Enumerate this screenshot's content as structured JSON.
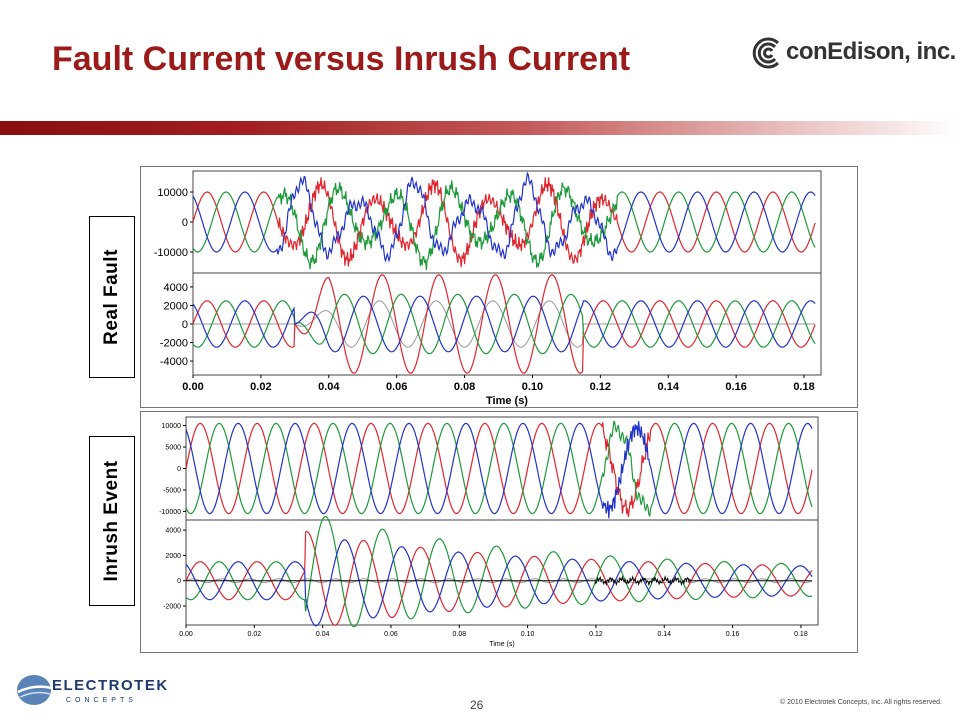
{
  "slide": {
    "title": "Fault Current versus Inrush Current",
    "page_number": "26",
    "copyright": "© 2010 Electrotek Concepts, Inc. All rights reserved."
  },
  "logos": {
    "top_right_text": "conEdison, inc.",
    "bottom_left_line1": "ELECTROTEK",
    "bottom_left_line2": "CONCEPTS"
  },
  "labels": {
    "top": "Real Fault",
    "bottom": "Inrush Event"
  },
  "colors": {
    "title": "#9b1b1b",
    "phase_red": "#e0262e",
    "phase_green": "#1e9a3a",
    "phase_blue": "#2233c8",
    "residual": "#999999"
  },
  "chart_data": [
    {
      "type": "line",
      "name": "real-fault",
      "xlabel": "Time (s)",
      "xlim": [
        0,
        0.185
      ],
      "x_ticks": [
        "0.00",
        "0.02",
        "0.04",
        "0.06",
        "0.08",
        "0.10",
        "0.12",
        "0.14",
        "0.16",
        "0.18"
      ],
      "panels": [
        {
          "quantity": "voltage",
          "ylim": [
            -17000,
            17000
          ],
          "y_ticks": [
            "10000",
            "0",
            "-10000"
          ],
          "series": [
            {
              "color": "red",
              "values": "three-phase sinusoid, amplitude 10000, 60 Hz, heavy distortion 0.025-0.125 s"
            },
            {
              "color": "green",
              "values": "three-phase sinusoid, amplitude 10000, 60 Hz, heavy distortion 0.025-0.125 s"
            },
            {
              "color": "blue",
              "values": "three-phase sinusoid, amplitude 10000, 60 Hz, heavy distortion 0.025-0.125 s"
            }
          ]
        },
        {
          "quantity": "current",
          "ylim": [
            -5500,
            5500
          ],
          "y_ticks": [
            "4000",
            "2000",
            "0",
            "-2000",
            "-4000"
          ],
          "series": [
            {
              "color": "red",
              "values": "load 2500 A peak; fault 0.03-0.115 s peaks ~5500 A"
            },
            {
              "color": "green",
              "values": "load 2500 A peak; fault 0.03-0.115 s"
            },
            {
              "color": "blue",
              "values": "load 2500 A peak; fault 0.03-0.115 s"
            },
            {
              "color": "gray",
              "values": "residual current rising during fault"
            }
          ]
        }
      ]
    },
    {
      "type": "line",
      "name": "inrush-event",
      "xlabel": "Time (s)",
      "xlim": [
        0,
        0.185
      ],
      "x_ticks": [
        "0.00",
        "0.02",
        "0.04",
        "0.06",
        "0.08",
        "0.10",
        "0.12",
        "0.14",
        "0.16",
        "0.18"
      ],
      "panels": [
        {
          "quantity": "voltage",
          "ylim": [
            -12000,
            12000
          ],
          "y_ticks": [
            "10000",
            "5000",
            "0",
            "-5000",
            "-10000"
          ],
          "series": [
            {
              "color": "red",
              "values": "three-phase sinusoid, amplitude ~10500, disturbance 0.122-0.135 s"
            },
            {
              "color": "green",
              "values": "three-phase sinusoid, amplitude ~10500, disturbance 0.122-0.135 s"
            },
            {
              "color": "blue",
              "values": "three-phase sinusoid, amplitude ~10500, disturbance 0.122-0.135 s"
            }
          ]
        },
        {
          "quantity": "current",
          "ylim": [
            -3500,
            4800
          ],
          "y_ticks": [
            "4000",
            "2000",
            "0",
            "-2000"
          ],
          "series": [
            {
              "color": "red",
              "values": "inrush peak ~3000 A at 0.045 s decaying"
            },
            {
              "color": "green",
              "values": "inrush peak ~4000 A at 0.04 s decaying"
            },
            {
              "color": "blue",
              "values": "inrush peak ~-2800 A decaying"
            },
            {
              "color": "black",
              "values": "residual noise near 0, 0.12-0.145 s"
            },
            {
              "color": "gray",
              "values": "residual near 0"
            }
          ]
        }
      ]
    }
  ]
}
